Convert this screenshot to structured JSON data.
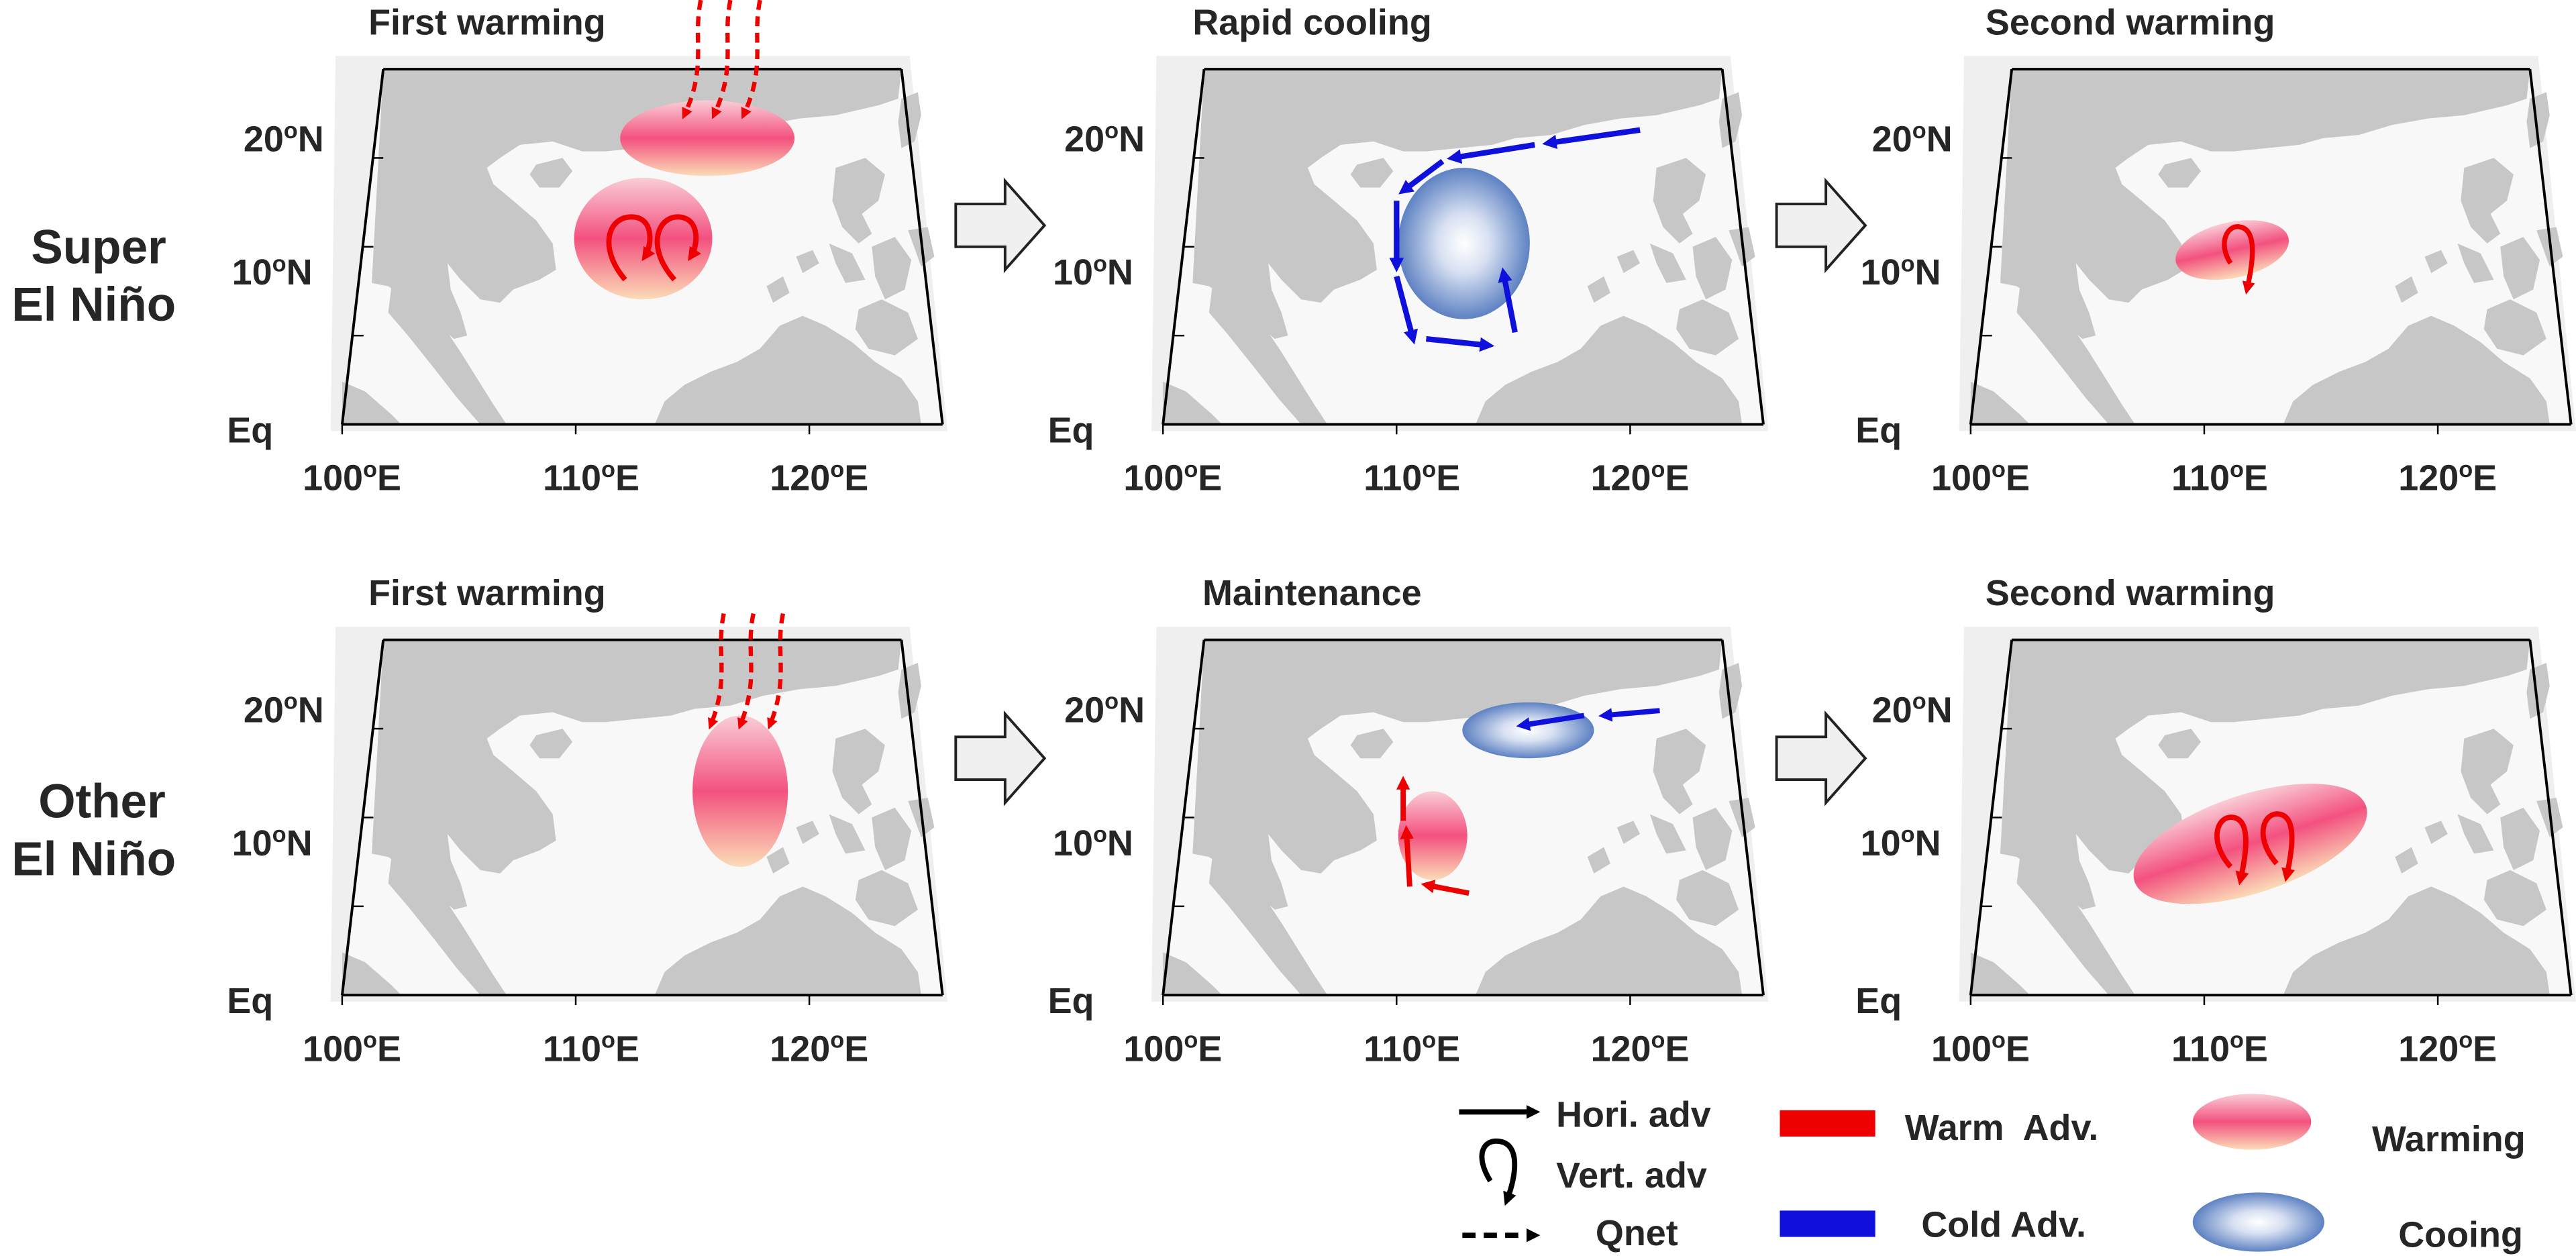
{
  "rows": [
    {
      "label_line1": "Super",
      "label_line2": "El Niño"
    },
    {
      "label_line1": "Other",
      "label_line2": "El Niño"
    }
  ],
  "panels": [
    {
      "title": "First warming"
    },
    {
      "title": "Rapid cooling"
    },
    {
      "title": "Second warming"
    },
    {
      "title": "First warming"
    },
    {
      "title": "Maintenance"
    },
    {
      "title": "Second warming"
    }
  ],
  "axes": {
    "x_ticks": [
      "100",
      "110",
      "120"
    ],
    "y_ticks": [
      "20",
      "10",
      "Eq"
    ],
    "degree": "o",
    "east": "E",
    "north": "N"
  },
  "legend": {
    "hori_adv": "Hori. adv",
    "vert_adv": "Vert. adv",
    "qnet": "Qnet",
    "warm_adv": "Warm  Adv.",
    "cold_adv": "Cold Adv.",
    "warming": "Warming",
    "cooling": "Cooing"
  },
  "colors": {
    "warm": "#ee0000",
    "cold": "#1010dd",
    "land": "#c7c7c7",
    "ocean": "#f8f8f8",
    "warm_blob_center": "#f3517f",
    "warm_blob_edge": "#fbd7b5",
    "cold_blob_center": "#ffffff",
    "cold_blob_edge": "#4a72bb"
  }
}
